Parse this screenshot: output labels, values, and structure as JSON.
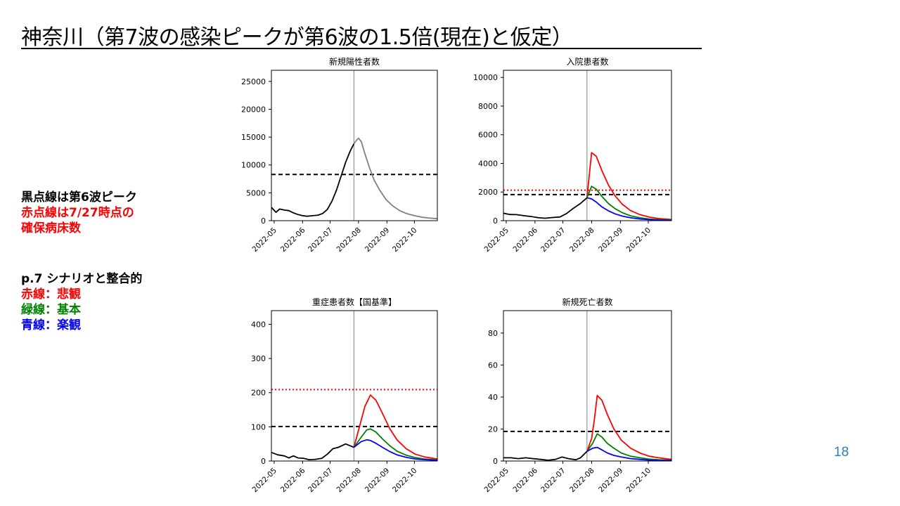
{
  "title": "神奈川（第7波の感染ピークが第6波の1.5倍(現在)と仮定）",
  "legend_notes": {
    "black_dotted": "黒点線は第6波ピーク",
    "red_dotted_line1": "赤点線は7/27時点の",
    "red_dotted_line2": "確保病床数",
    "scenario_header": "p.7 シナリオと整合的",
    "red_line": "赤線：悲観",
    "green_line": "緑線：基本",
    "blue_line": "青線：楽観"
  },
  "colors": {
    "red": "#ff0000",
    "green": "#008000",
    "blue": "#0000ff",
    "black": "#000000",
    "gray": "#808080",
    "page_number": "#2e7fb8"
  },
  "page_number": "18",
  "chart_data": [
    {
      "type": "line",
      "title": "新規陽性者数",
      "x_tick_labels": [
        "2022-05",
        "2022-06",
        "2022-07",
        "2022-08",
        "2022-09",
        "2022-10"
      ],
      "x_tick_dates": [
        "2022-05-01",
        "2022-06-01",
        "2022-07-01",
        "2022-08-01",
        "2022-09-01",
        "2022-10-01"
      ],
      "x_range": [
        "2022-04-28",
        "2022-10-26"
      ],
      "ylim": [
        0,
        27000
      ],
      "y_ticks": [
        0,
        5000,
        10000,
        15000,
        20000,
        25000
      ],
      "vline_date": "2022-07-27",
      "reference_lines": [
        {
          "label": "第6波ピーク",
          "value": 8300,
          "style": "dashed",
          "color": "#000000"
        }
      ],
      "series": [
        {
          "color": "#000000",
          "points": [
            [
              "2022-04-28",
              2400
            ],
            [
              "2022-05-03",
              1500
            ],
            [
              "2022-05-07",
              2100
            ],
            [
              "2022-05-12",
              1900
            ],
            [
              "2022-05-17",
              1800
            ],
            [
              "2022-05-22",
              1400
            ],
            [
              "2022-05-27",
              1100
            ],
            [
              "2022-06-01",
              900
            ],
            [
              "2022-06-06",
              800
            ],
            [
              "2022-06-12",
              900
            ],
            [
              "2022-06-18",
              1000
            ],
            [
              "2022-06-23",
              1300
            ],
            [
              "2022-06-28",
              2000
            ],
            [
              "2022-07-03",
              3500
            ],
            [
              "2022-07-08",
              5500
            ],
            [
              "2022-07-13",
              8000
            ],
            [
              "2022-07-18",
              10500
            ],
            [
              "2022-07-23",
              12500
            ],
            [
              "2022-07-27",
              13800
            ]
          ]
        },
        {
          "color": "#808080",
          "points": [
            [
              "2022-07-27",
              13800
            ],
            [
              "2022-07-30",
              14500
            ],
            [
              "2022-08-01",
              14800
            ],
            [
              "2022-08-04",
              14200
            ],
            [
              "2022-08-08",
              12000
            ],
            [
              "2022-08-13",
              9500
            ],
            [
              "2022-08-18",
              7300
            ],
            [
              "2022-08-24",
              5500
            ],
            [
              "2022-08-31",
              3800
            ],
            [
              "2022-09-07",
              2700
            ],
            [
              "2022-09-15",
              1800
            ],
            [
              "2022-09-22",
              1300
            ],
            [
              "2022-10-01",
              900
            ],
            [
              "2022-10-10",
              600
            ],
            [
              "2022-10-18",
              450
            ],
            [
              "2022-10-26",
              350
            ]
          ]
        }
      ]
    },
    {
      "type": "line",
      "title": "入院患者数",
      "x_tick_labels": [
        "2022-05",
        "2022-06",
        "2022-07",
        "2022-08",
        "2022-09",
        "2022-10"
      ],
      "x_tick_dates": [
        "2022-05-01",
        "2022-06-01",
        "2022-07-01",
        "2022-08-01",
        "2022-09-01",
        "2022-10-01"
      ],
      "x_range": [
        "2022-04-28",
        "2022-10-26"
      ],
      "ylim": [
        0,
        10500
      ],
      "y_ticks": [
        0,
        2000,
        4000,
        6000,
        8000,
        10000
      ],
      "vline_date": "2022-07-27",
      "reference_lines": [
        {
          "label": "第6波ピーク",
          "value": 1820,
          "style": "dashed",
          "color": "#000000"
        },
        {
          "label": "7/27時点の確保病床数",
          "value": 2130,
          "style": "dotted",
          "color": "#ff0000"
        }
      ],
      "series": [
        {
          "color": "#000000",
          "points": [
            [
              "2022-04-28",
              520
            ],
            [
              "2022-05-05",
              430
            ],
            [
              "2022-05-12",
              420
            ],
            [
              "2022-05-20",
              350
            ],
            [
              "2022-05-28",
              290
            ],
            [
              "2022-06-05",
              200
            ],
            [
              "2022-06-12",
              170
            ],
            [
              "2022-06-20",
              220
            ],
            [
              "2022-06-28",
              260
            ],
            [
              "2022-07-05",
              500
            ],
            [
              "2022-07-12",
              850
            ],
            [
              "2022-07-20",
              1200
            ],
            [
              "2022-07-27",
              1600
            ]
          ]
        },
        {
          "color": "#ff0000",
          "points": [
            [
              "2022-07-27",
              1600
            ],
            [
              "2022-08-01",
              4750
            ],
            [
              "2022-08-06",
              4500
            ],
            [
              "2022-08-12",
              3500
            ],
            [
              "2022-08-19",
              2500
            ],
            [
              "2022-08-26",
              1750
            ],
            [
              "2022-09-03",
              1150
            ],
            [
              "2022-09-12",
              700
            ],
            [
              "2022-09-22",
              420
            ],
            [
              "2022-10-02",
              250
            ],
            [
              "2022-10-12",
              150
            ],
            [
              "2022-10-26",
              80
            ]
          ]
        },
        {
          "color": "#008000",
          "points": [
            [
              "2022-07-27",
              1600
            ],
            [
              "2022-08-01",
              2400
            ],
            [
              "2022-08-06",
              2200
            ],
            [
              "2022-08-12",
              1700
            ],
            [
              "2022-08-19",
              1200
            ],
            [
              "2022-08-26",
              850
            ],
            [
              "2022-09-03",
              560
            ],
            [
              "2022-09-12",
              340
            ],
            [
              "2022-09-22",
              200
            ],
            [
              "2022-10-02",
              120
            ],
            [
              "2022-10-12",
              75
            ],
            [
              "2022-10-26",
              40
            ]
          ]
        },
        {
          "color": "#0000ff",
          "points": [
            [
              "2022-07-27",
              1600
            ],
            [
              "2022-08-01",
              1520
            ],
            [
              "2022-08-06",
              1300
            ],
            [
              "2022-08-12",
              960
            ],
            [
              "2022-08-19",
              690
            ],
            [
              "2022-08-26",
              480
            ],
            [
              "2022-09-03",
              320
            ],
            [
              "2022-09-12",
              200
            ],
            [
              "2022-09-22",
              120
            ],
            [
              "2022-10-02",
              75
            ],
            [
              "2022-10-12",
              45
            ],
            [
              "2022-10-26",
              25
            ]
          ]
        }
      ]
    },
    {
      "type": "line",
      "title": "重症患者数【国基準】",
      "x_tick_labels": [
        "2022-05",
        "2022-06",
        "2022-07",
        "2022-08",
        "2022-09",
        "2022-10"
      ],
      "x_tick_dates": [
        "2022-05-01",
        "2022-06-01",
        "2022-07-01",
        "2022-08-01",
        "2022-09-01",
        "2022-10-01"
      ],
      "x_range": [
        "2022-04-28",
        "2022-10-26"
      ],
      "ylim": [
        0,
        440
      ],
      "y_ticks": [
        0,
        100,
        200,
        300,
        400
      ],
      "vline_date": "2022-07-27",
      "reference_lines": [
        {
          "label": "第6波ピーク",
          "value": 101,
          "style": "dashed",
          "color": "#000000"
        },
        {
          "label": "7/27時点の確保病床数",
          "value": 209,
          "style": "dotted",
          "color": "#ff0000"
        }
      ],
      "series": [
        {
          "color": "#000000",
          "points": [
            [
              "2022-04-28",
              25
            ],
            [
              "2022-05-05",
              18
            ],
            [
              "2022-05-12",
              15
            ],
            [
              "2022-05-17",
              9
            ],
            [
              "2022-05-22",
              15
            ],
            [
              "2022-05-27",
              9
            ],
            [
              "2022-06-02",
              8
            ],
            [
              "2022-06-08",
              4
            ],
            [
              "2022-06-15",
              5
            ],
            [
              "2022-06-22",
              8
            ],
            [
              "2022-06-28",
              20
            ],
            [
              "2022-07-04",
              36
            ],
            [
              "2022-07-10",
              40
            ],
            [
              "2022-07-18",
              50
            ],
            [
              "2022-07-27",
              40
            ]
          ]
        },
        {
          "color": "#ff0000",
          "points": [
            [
              "2022-07-27",
              40
            ],
            [
              "2022-08-02",
              100
            ],
            [
              "2022-08-08",
              160
            ],
            [
              "2022-08-14",
              193
            ],
            [
              "2022-08-20",
              178
            ],
            [
              "2022-08-27",
              140
            ],
            [
              "2022-09-04",
              95
            ],
            [
              "2022-09-12",
              62
            ],
            [
              "2022-09-22",
              36
            ],
            [
              "2022-10-02",
              20
            ],
            [
              "2022-10-12",
              12
            ],
            [
              "2022-10-26",
              6
            ]
          ]
        },
        {
          "color": "#008000",
          "points": [
            [
              "2022-07-27",
              40
            ],
            [
              "2022-08-04",
              70
            ],
            [
              "2022-08-10",
              91
            ],
            [
              "2022-08-14",
              94
            ],
            [
              "2022-08-20",
              85
            ],
            [
              "2022-08-27",
              65
            ],
            [
              "2022-09-04",
              45
            ],
            [
              "2022-09-12",
              29
            ],
            [
              "2022-09-22",
              17
            ],
            [
              "2022-10-02",
              10
            ],
            [
              "2022-10-12",
              6
            ],
            [
              "2022-10-26",
              3
            ]
          ]
        },
        {
          "color": "#0000ff",
          "points": [
            [
              "2022-07-27",
              40
            ],
            [
              "2022-08-04",
              57
            ],
            [
              "2022-08-10",
              62
            ],
            [
              "2022-08-14",
              60
            ],
            [
              "2022-08-20",
              52
            ],
            [
              "2022-08-27",
              40
            ],
            [
              "2022-09-04",
              28
            ],
            [
              "2022-09-12",
              18
            ],
            [
              "2022-09-22",
              11
            ],
            [
              "2022-10-02",
              6
            ],
            [
              "2022-10-12",
              4
            ],
            [
              "2022-10-26",
              2
            ]
          ]
        }
      ]
    },
    {
      "type": "line",
      "title": "新規死亡者数",
      "x_tick_labels": [
        "2022-05",
        "2022-06",
        "2022-07",
        "2022-08",
        "2022-09",
        "2022-10"
      ],
      "x_tick_dates": [
        "2022-05-01",
        "2022-06-01",
        "2022-07-01",
        "2022-08-01",
        "2022-09-01",
        "2022-10-01"
      ],
      "x_range": [
        "2022-04-28",
        "2022-10-26"
      ],
      "ylim": [
        0,
        94
      ],
      "y_ticks": [
        0,
        20,
        40,
        60,
        80
      ],
      "vline_date": "2022-07-27",
      "reference_lines": [
        {
          "label": "第6波ピーク",
          "value": 18.5,
          "style": "dashed",
          "color": "#000000"
        }
      ],
      "series": [
        {
          "color": "#000000",
          "points": [
            [
              "2022-04-28",
              2
            ],
            [
              "2022-05-06",
              2
            ],
            [
              "2022-05-14",
              1.5
            ],
            [
              "2022-05-22",
              2
            ],
            [
              "2022-05-30",
              1.5
            ],
            [
              "2022-06-07",
              1
            ],
            [
              "2022-06-15",
              0.5
            ],
            [
              "2022-06-23",
              1
            ],
            [
              "2022-06-30",
              2.5
            ],
            [
              "2022-07-07",
              1.5
            ],
            [
              "2022-07-15",
              0.8
            ],
            [
              "2022-07-20",
              2
            ],
            [
              "2022-07-27",
              6
            ]
          ]
        },
        {
          "color": "#ff0000",
          "points": [
            [
              "2022-07-27",
              6
            ],
            [
              "2022-08-01",
              14
            ],
            [
              "2022-08-04",
              26
            ],
            [
              "2022-08-07",
              41
            ],
            [
              "2022-08-12",
              38
            ],
            [
              "2022-08-18",
              29
            ],
            [
              "2022-08-25",
              20
            ],
            [
              "2022-09-02",
              13
            ],
            [
              "2022-09-12",
              8
            ],
            [
              "2022-09-22",
              5
            ],
            [
              "2022-10-02",
              3
            ],
            [
              "2022-10-12",
              2
            ],
            [
              "2022-10-26",
              1
            ]
          ]
        },
        {
          "color": "#008000",
          "points": [
            [
              "2022-07-27",
              6
            ],
            [
              "2022-08-02",
              11
            ],
            [
              "2022-08-07",
              17
            ],
            [
              "2022-08-12",
              15
            ],
            [
              "2022-08-18",
              11
            ],
            [
              "2022-08-25",
              8
            ],
            [
              "2022-09-02",
              5
            ],
            [
              "2022-09-12",
              3
            ],
            [
              "2022-09-22",
              2
            ],
            [
              "2022-10-02",
              1.2
            ],
            [
              "2022-10-12",
              0.8
            ],
            [
              "2022-10-26",
              0.5
            ]
          ]
        },
        {
          "color": "#0000ff",
          "points": [
            [
              "2022-07-27",
              6
            ],
            [
              "2022-08-02",
              8
            ],
            [
              "2022-08-07",
              8.5
            ],
            [
              "2022-08-12",
              7
            ],
            [
              "2022-08-18",
              5
            ],
            [
              "2022-08-25",
              3.5
            ],
            [
              "2022-09-02",
              2.5
            ],
            [
              "2022-09-12",
              1.5
            ],
            [
              "2022-09-22",
              1
            ],
            [
              "2022-10-02",
              0.6
            ],
            [
              "2022-10-12",
              0.4
            ],
            [
              "2022-10-26",
              0.3
            ]
          ]
        }
      ]
    }
  ]
}
